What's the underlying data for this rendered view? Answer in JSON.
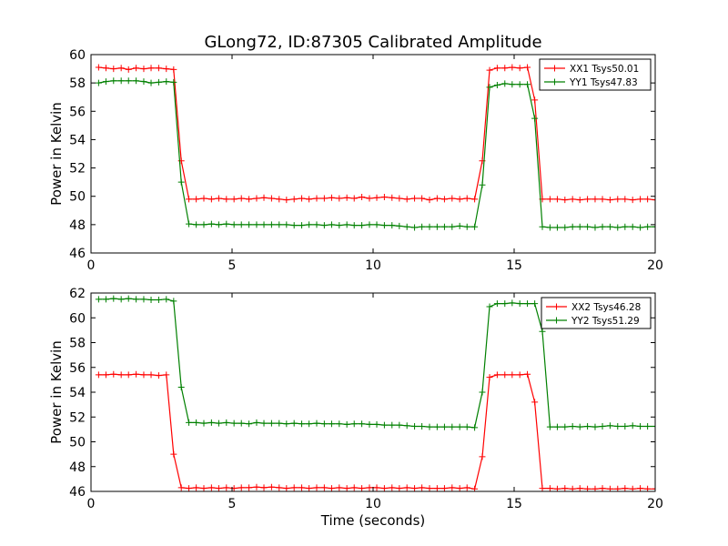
{
  "figure_title": "GLong72, ID:87305 Calibrated Amplitude",
  "chart_data": [
    {
      "type": "line",
      "title": "GLong72, ID:87305 Calibrated Amplitude",
      "xlabel": "",
      "ylabel": "Power in Kelvin",
      "xlim": [
        0,
        20
      ],
      "ylim": [
        46,
        60
      ],
      "xticks": [
        0,
        5,
        10,
        15,
        20
      ],
      "yticks": [
        46,
        48,
        50,
        52,
        54,
        56,
        58,
        60
      ],
      "grid": false,
      "legend_position": "top-right",
      "x": [
        0.27,
        0.53,
        0.8,
        1.07,
        1.33,
        1.6,
        1.87,
        2.13,
        2.4,
        2.67,
        2.93,
        3.2,
        3.47,
        3.73,
        4.0,
        4.27,
        4.53,
        4.8,
        5.07,
        5.33,
        5.6,
        5.87,
        6.13,
        6.4,
        6.67,
        6.93,
        7.2,
        7.47,
        7.73,
        8.0,
        8.27,
        8.53,
        8.8,
        9.07,
        9.33,
        9.6,
        9.87,
        10.13,
        10.4,
        10.67,
        10.93,
        11.2,
        11.47,
        11.73,
        12.0,
        12.27,
        12.53,
        12.8,
        13.07,
        13.33,
        13.6,
        13.87,
        14.13,
        14.4,
        14.67,
        14.93,
        15.2,
        15.47,
        15.73,
        16.0,
        16.27,
        16.53,
        16.8,
        17.07,
        17.33,
        17.6,
        17.87,
        18.13,
        18.4,
        18.67,
        18.93,
        19.2,
        19.47,
        19.73,
        20.0
      ],
      "series": [
        {
          "name": "XX1 Tsys50.01",
          "color": "#ff0000",
          "values": [
            59.1,
            59.05,
            59.0,
            59.05,
            58.95,
            59.05,
            59.0,
            59.05,
            59.05,
            59.0,
            58.95,
            52.5,
            49.8,
            49.8,
            49.85,
            49.8,
            49.85,
            49.8,
            49.8,
            49.85,
            49.8,
            49.85,
            49.9,
            49.85,
            49.8,
            49.75,
            49.8,
            49.85,
            49.8,
            49.85,
            49.85,
            49.9,
            49.85,
            49.9,
            49.85,
            49.95,
            49.85,
            49.9,
            49.95,
            49.9,
            49.85,
            49.8,
            49.85,
            49.85,
            49.75,
            49.85,
            49.8,
            49.85,
            49.8,
            49.85,
            49.8,
            52.5,
            58.9,
            59.05,
            59.05,
            59.1,
            59.05,
            59.1,
            56.8,
            49.8,
            49.8,
            49.8,
            49.75,
            49.8,
            49.75,
            49.8,
            49.8,
            49.8,
            49.75,
            49.8,
            49.8,
            49.75,
            49.8,
            49.8,
            49.75
          ]
        },
        {
          "name": "YY1 Tsys47.83",
          "color": "#008000",
          "values": [
            58.0,
            58.1,
            58.15,
            58.15,
            58.15,
            58.15,
            58.1,
            58.0,
            58.05,
            58.1,
            58.05,
            51.0,
            48.05,
            48.0,
            48.0,
            48.05,
            48.0,
            48.05,
            48.0,
            48.0,
            48.0,
            48.0,
            48.0,
            48.0,
            48.0,
            48.0,
            47.95,
            47.95,
            48.0,
            48.0,
            47.95,
            48.0,
            47.95,
            48.0,
            47.95,
            47.95,
            48.0,
            48.0,
            47.95,
            47.95,
            47.9,
            47.85,
            47.8,
            47.85,
            47.85,
            47.85,
            47.85,
            47.85,
            47.9,
            47.85,
            47.85,
            50.8,
            57.7,
            57.85,
            57.95,
            57.9,
            57.9,
            57.9,
            55.5,
            47.85,
            47.8,
            47.8,
            47.8,
            47.85,
            47.85,
            47.85,
            47.8,
            47.85,
            47.85,
            47.8,
            47.85,
            47.85,
            47.8,
            47.85,
            47.85
          ]
        }
      ]
    },
    {
      "type": "line",
      "title": "",
      "xlabel": "Time (seconds)",
      "ylabel": "Power in Kelvin",
      "xlim": [
        0,
        20
      ],
      "ylim": [
        46,
        62
      ],
      "xticks": [
        0,
        5,
        10,
        15,
        20
      ],
      "yticks": [
        46,
        48,
        50,
        52,
        54,
        56,
        58,
        60,
        62
      ],
      "grid": false,
      "legend_position": "top-right",
      "x": [
        0.27,
        0.53,
        0.8,
        1.07,
        1.33,
        1.6,
        1.87,
        2.13,
        2.4,
        2.67,
        2.93,
        3.2,
        3.47,
        3.73,
        4.0,
        4.27,
        4.53,
        4.8,
        5.07,
        5.33,
        5.6,
        5.87,
        6.13,
        6.4,
        6.67,
        6.93,
        7.2,
        7.47,
        7.73,
        8.0,
        8.27,
        8.53,
        8.8,
        9.07,
        9.33,
        9.6,
        9.87,
        10.13,
        10.4,
        10.67,
        10.93,
        11.2,
        11.47,
        11.73,
        12.0,
        12.27,
        12.53,
        12.8,
        13.07,
        13.33,
        13.6,
        13.87,
        14.13,
        14.4,
        14.67,
        14.93,
        15.2,
        15.47,
        15.73,
        16.0,
        16.27,
        16.53,
        16.8,
        17.07,
        17.33,
        17.6,
        17.87,
        18.13,
        18.4,
        18.67,
        18.93,
        19.2,
        19.47,
        19.73,
        20.0
      ],
      "series": [
        {
          "name": "XX2 Tsys46.28",
          "color": "#ff0000",
          "values": [
            55.4,
            55.4,
            55.45,
            55.4,
            55.4,
            55.45,
            55.4,
            55.4,
            55.35,
            55.4,
            49.0,
            46.3,
            46.25,
            46.3,
            46.25,
            46.3,
            46.25,
            46.3,
            46.25,
            46.3,
            46.3,
            46.35,
            46.3,
            46.35,
            46.3,
            46.25,
            46.3,
            46.3,
            46.25,
            46.3,
            46.3,
            46.25,
            46.3,
            46.25,
            46.3,
            46.25,
            46.3,
            46.3,
            46.25,
            46.3,
            46.25,
            46.3,
            46.25,
            46.3,
            46.25,
            46.25,
            46.25,
            46.3,
            46.25,
            46.3,
            46.2,
            48.8,
            55.2,
            55.4,
            55.4,
            55.4,
            55.4,
            55.45,
            53.2,
            46.25,
            46.25,
            46.2,
            46.25,
            46.2,
            46.25,
            46.2,
            46.2,
            46.25,
            46.2,
            46.2,
            46.25,
            46.2,
            46.25,
            46.2,
            46.2
          ]
        },
        {
          "name": "YY2 Tsys51.29",
          "color": "#008000",
          "values": [
            61.5,
            61.5,
            61.55,
            61.5,
            61.55,
            61.5,
            61.5,
            61.45,
            61.45,
            61.5,
            61.35,
            54.4,
            51.55,
            51.55,
            51.5,
            51.55,
            51.5,
            51.55,
            51.5,
            51.5,
            51.45,
            51.55,
            51.5,
            51.5,
            51.5,
            51.45,
            51.5,
            51.45,
            51.45,
            51.5,
            51.45,
            51.45,
            51.45,
            51.4,
            51.45,
            51.45,
            51.4,
            51.4,
            51.35,
            51.35,
            51.35,
            51.3,
            51.25,
            51.25,
            51.2,
            51.2,
            51.2,
            51.2,
            51.2,
            51.2,
            51.15,
            54.0,
            60.9,
            61.15,
            61.15,
            61.2,
            61.15,
            61.15,
            61.15,
            58.9,
            51.2,
            51.2,
            51.2,
            51.25,
            51.2,
            51.25,
            51.2,
            51.25,
            51.3,
            51.25,
            51.25,
            51.3,
            51.25,
            51.25,
            51.25
          ]
        }
      ]
    }
  ]
}
